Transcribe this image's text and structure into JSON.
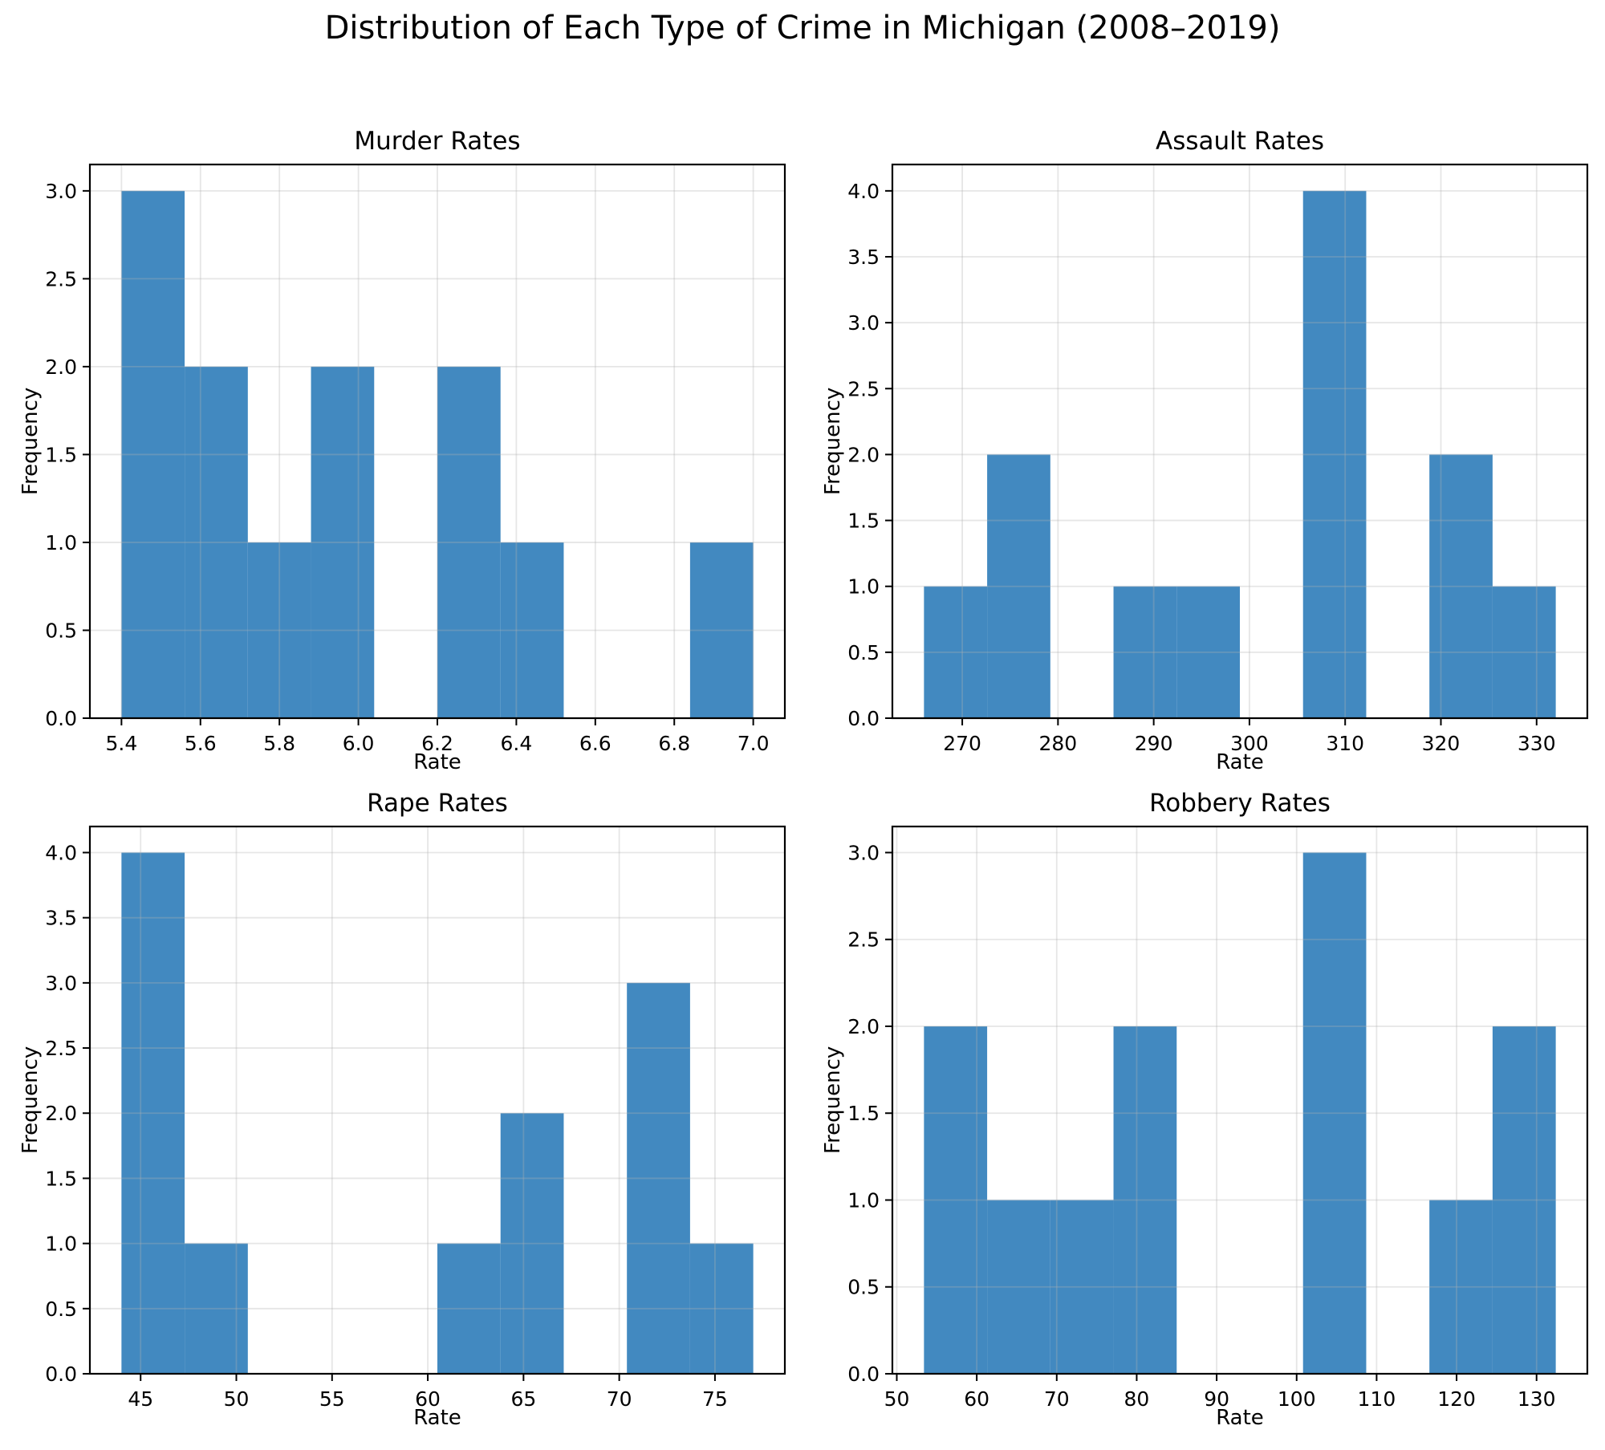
{
  "figure": {
    "suptitle": "Distribution of Each Type of Crime in Michigan (2008–2019)"
  },
  "style": {
    "bar_color": "#4289c0",
    "grid_color": "#b0b0b0",
    "grid_opacity": 0.32,
    "spine_color": "#000000",
    "text_color": "#000000",
    "background": "#ffffff"
  },
  "chart_data": [
    {
      "id": "murder",
      "type": "histogram",
      "title": "Murder Rates",
      "xlabel": "Rate",
      "ylabel": "Frequency",
      "bin_edges": [
        5.4,
        5.56,
        5.72,
        5.88,
        6.04,
        6.2,
        6.36,
        6.52,
        6.68,
        6.84,
        7.0
      ],
      "frequencies": [
        3,
        2,
        1,
        2,
        0,
        2,
        1,
        0,
        0,
        1
      ],
      "xlim": [
        5.32,
        7.08
      ],
      "ylim": [
        0,
        3.15
      ],
      "xtick_values": [
        5.4,
        5.6,
        5.8,
        6.0,
        6.2,
        6.4,
        6.6,
        6.8,
        7.0
      ],
      "xtick_labels": [
        "5.4",
        "5.6",
        "5.8",
        "6.0",
        "6.2",
        "6.4",
        "6.6",
        "6.8",
        "7.0"
      ],
      "ytick_values": [
        0,
        0.5,
        1.0,
        1.5,
        2.0,
        2.5,
        3.0
      ],
      "ytick_labels": [
        "0.0",
        "0.5",
        "1.0",
        "1.5",
        "2.0",
        "2.5",
        "3.0"
      ],
      "grid": true
    },
    {
      "id": "assault",
      "type": "histogram",
      "title": "Assault Rates",
      "xlabel": "Rate",
      "ylabel": "Frequency",
      "bin_edges": [
        266.0,
        272.6,
        279.2,
        285.8,
        292.4,
        299.0,
        305.6,
        312.2,
        318.8,
        325.4,
        332.0
      ],
      "frequencies": [
        1,
        2,
        0,
        1,
        1,
        0,
        4,
        0,
        2,
        1
      ],
      "xlim": [
        262.7,
        335.3
      ],
      "ylim": [
        0,
        4.2
      ],
      "xtick_values": [
        270,
        280,
        290,
        300,
        310,
        320,
        330
      ],
      "xtick_labels": [
        "270",
        "280",
        "290",
        "300",
        "310",
        "320",
        "330"
      ],
      "ytick_values": [
        0,
        0.5,
        1.0,
        1.5,
        2.0,
        2.5,
        3.0,
        3.5,
        4.0
      ],
      "ytick_labels": [
        "0.0",
        "0.5",
        "1.0",
        "1.5",
        "2.0",
        "2.5",
        "3.0",
        "3.5",
        "4.0"
      ],
      "grid": true
    },
    {
      "id": "rape",
      "type": "histogram",
      "title": "Rape Rates",
      "xlabel": "Rate",
      "ylabel": "Frequency",
      "bin_edges": [
        44.0,
        47.3,
        50.6,
        53.9,
        57.2,
        60.5,
        63.8,
        67.1,
        70.4,
        73.7,
        77.0
      ],
      "frequencies": [
        4,
        1,
        0,
        0,
        0,
        1,
        2,
        0,
        3,
        1
      ],
      "xlim": [
        42.35,
        78.65
      ],
      "ylim": [
        0,
        4.2
      ],
      "xtick_values": [
        45,
        50,
        55,
        60,
        65,
        70,
        75
      ],
      "xtick_labels": [
        "45",
        "50",
        "55",
        "60",
        "65",
        "70",
        "75"
      ],
      "ytick_values": [
        0,
        0.5,
        1.0,
        1.5,
        2.0,
        2.5,
        3.0,
        3.5,
        4.0
      ],
      "ytick_labels": [
        "0.0",
        "0.5",
        "1.0",
        "1.5",
        "2.0",
        "2.5",
        "3.0",
        "3.5",
        "4.0"
      ],
      "grid": true
    },
    {
      "id": "robbery",
      "type": "histogram",
      "title": "Robbery Rates",
      "xlabel": "Rate",
      "ylabel": "Frequency",
      "bin_edges": [
        53.4,
        61.3,
        69.2,
        77.1,
        85.0,
        92.9,
        100.8,
        108.7,
        116.6,
        124.5,
        132.4
      ],
      "frequencies": [
        2,
        1,
        1,
        2,
        0,
        0,
        3,
        0,
        1,
        2
      ],
      "xlim": [
        49.45,
        136.35
      ],
      "ylim": [
        0,
        3.15
      ],
      "xtick_values": [
        50,
        60,
        70,
        80,
        90,
        100,
        110,
        120,
        130
      ],
      "xtick_labels": [
        "50",
        "60",
        "70",
        "80",
        "90",
        "100",
        "110",
        "120",
        "130"
      ],
      "ytick_values": [
        0,
        0.5,
        1.0,
        1.5,
        2.0,
        2.5,
        3.0
      ],
      "ytick_labels": [
        "0.0",
        "0.5",
        "1.0",
        "1.5",
        "2.0",
        "2.5",
        "3.0"
      ],
      "grid": true
    }
  ]
}
